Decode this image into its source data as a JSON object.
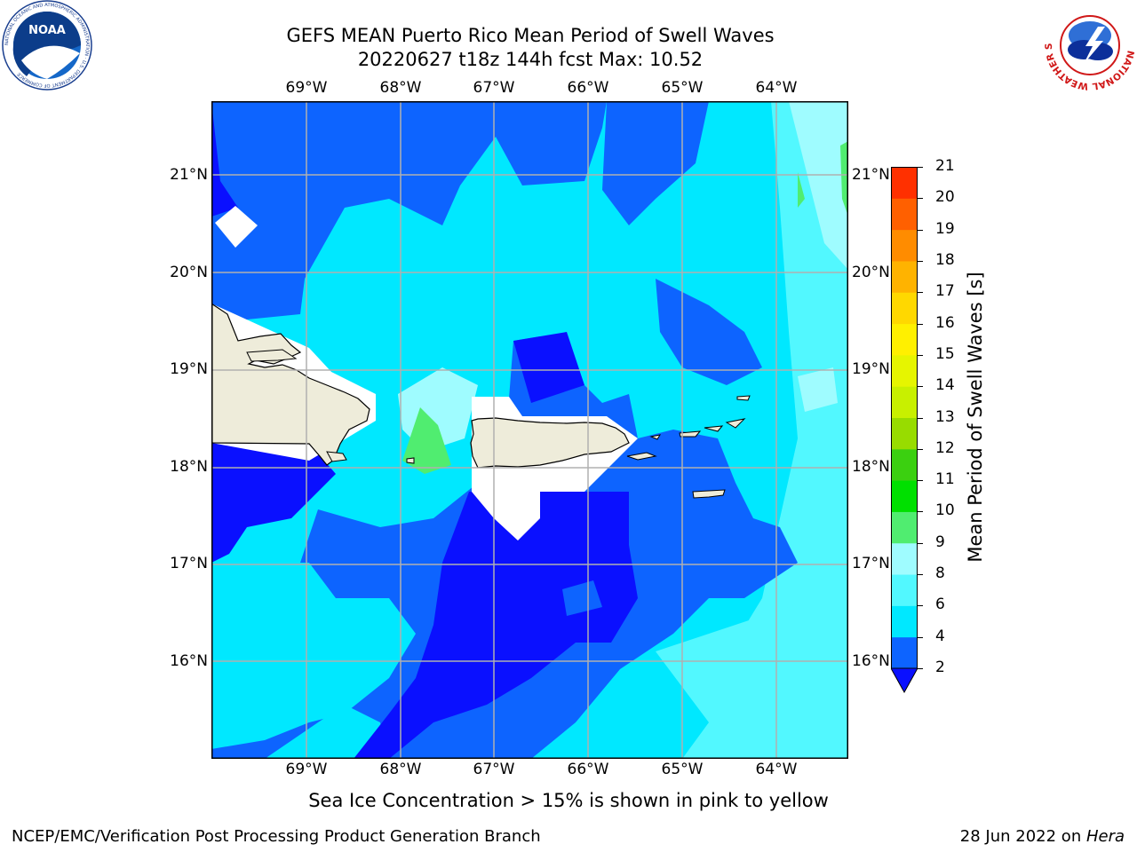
{
  "header": {
    "title_line1": "GEFS MEAN Puerto Rico Mean Period of Swell Waves",
    "title_line2": "20220627 t18z 144h fcst   Max: 10.52"
  },
  "map": {
    "lon_labels": [
      "69°W",
      "68°W",
      "67°W",
      "66°W",
      "65°W",
      "64°W"
    ],
    "lat_labels": [
      "21°N",
      "20°N",
      "19°N",
      "18°N",
      "17°N",
      "16°N"
    ],
    "land_color": "#eeecda",
    "grid_color": "#b0b0b0"
  },
  "colorbar": {
    "label": "Mean Period of Swell Waves [s]",
    "ticks": [
      "2",
      "4",
      "6",
      "8",
      "9",
      "10",
      "11",
      "12",
      "13",
      "14",
      "15",
      "16",
      "17",
      "18",
      "19",
      "20",
      "21"
    ],
    "colors": [
      "#0d64ff",
      "#00e8ff",
      "#52f8ff",
      "#9ffcff",
      "#50ed70",
      "#00e000",
      "#3bd010",
      "#98dc00",
      "#c8f000",
      "#e6f500",
      "#fff000",
      "#ffd800",
      "#ffb300",
      "#ff8c00",
      "#ff6000",
      "#ff3000",
      "#ff0000"
    ],
    "under_color": "#0a10ff"
  },
  "footer": {
    "ice_note": "Sea Ice Concentration > 15% is shown in pink to yellow",
    "credit": "NCEP/EMC/Verification Post Processing Product Generation Branch",
    "date": "28 Jun 2022 on ",
    "machine": "Hera"
  },
  "logos": {
    "noaa_text": "NOAA",
    "noaa_ring": "NATIONAL OCEANIC AND ATMOSPHERIC ADMINISTRATION · U.S. DEPARTMENT OF COMMERCE",
    "nws_ring": "NATIONAL WEATHER SERVICE"
  }
}
